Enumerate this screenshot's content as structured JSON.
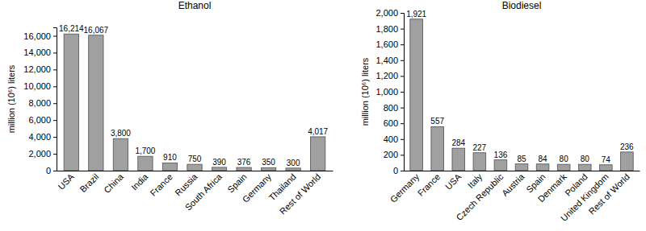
{
  "chart_data": [
    {
      "type": "bar",
      "title": "Ethanol",
      "ylabel": "million (10⁶) liters",
      "categories": [
        "USA",
        "Brazil",
        "China",
        "India",
        "France",
        "Russia",
        "South Africa",
        "Spain",
        "Germany",
        "Thailand",
        "Rest of World"
      ],
      "values": [
        16214,
        16067,
        3800,
        1700,
        910,
        750,
        390,
        376,
        350,
        300,
        4017
      ],
      "value_labels": [
        "16,214",
        "16,067",
        "3,800",
        "1,700",
        "910",
        "750",
        "390",
        "376",
        "350",
        "300",
        "4,017"
      ],
      "color": "#a0a0a0",
      "data_labels": true,
      "grid": false,
      "ylim": [
        0,
        17000
      ],
      "yticks": [
        0,
        {
          "value": 2000,
          "label": "2,000"
        },
        {
          "value": 4000,
          "label": "4,000"
        },
        {
          "value": 6000,
          "label": "6,000"
        },
        {
          "value": 8000,
          "label": "8,000"
        },
        {
          "value": 10000,
          "label": "10,000"
        },
        {
          "value": 12000,
          "label": "12,000"
        },
        {
          "value": 14000,
          "label": "14,000"
        },
        {
          "value": 16000,
          "label": "16,000"
        }
      ]
    },
    {
      "type": "bar",
      "title": "Biodiesel",
      "ylabel": "million (10⁶) liters",
      "categories": [
        "Germany",
        "France",
        "USA",
        "Italy",
        "Czech Republic",
        "Austria",
        "Spain",
        "Denmark",
        "Poland",
        "United Kingdom",
        "Rest of World"
      ],
      "values": [
        1921,
        557,
        284,
        227,
        136,
        85,
        84,
        80,
        80,
        74,
        236
      ],
      "value_labels": [
        "1,921",
        "557",
        "284",
        "227",
        "136",
        "85",
        "84",
        "80",
        "80",
        "74",
        "236"
      ],
      "color": "#a0a0a0",
      "data_labels": true,
      "grid": false,
      "ylim": [
        0,
        2000
      ],
      "yticks": [
        0,
        200,
        400,
        600,
        800,
        {
          "value": 1000,
          "label": "1,000"
        },
        {
          "value": 1200,
          "label": "1,200"
        },
        {
          "value": 1400,
          "label": "1,400"
        },
        {
          "value": 1600,
          "label": "1,600"
        },
        {
          "value": 1800,
          "label": "1,800"
        },
        {
          "value": 2000,
          "label": "2,000"
        }
      ]
    }
  ]
}
